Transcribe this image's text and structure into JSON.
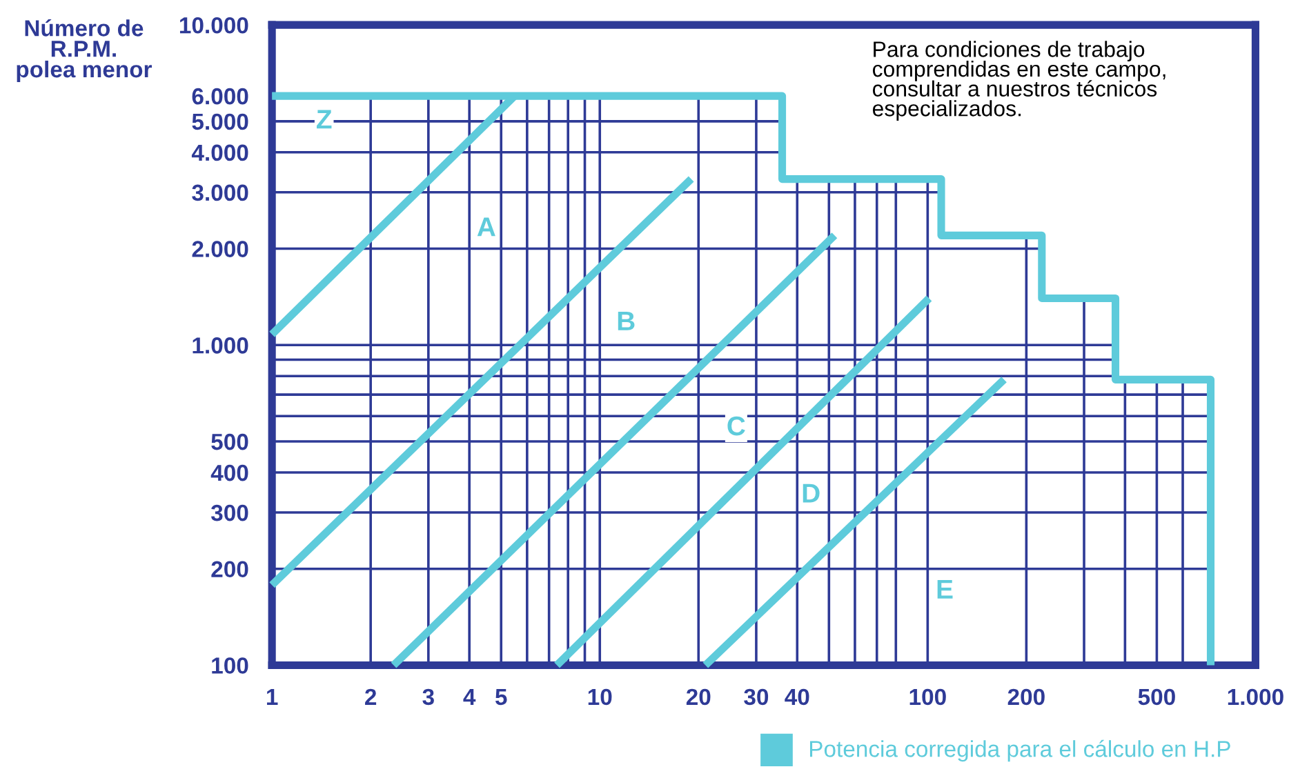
{
  "chart_data": {
    "type": "line",
    "xlabel": "Potencia corregida para el cálculo en H.P",
    "ylabel": "Número de\nR.P.M.\npolea menor",
    "log": "xy",
    "grid": true,
    "marker": "none",
    "line_style": "solid",
    "xlim": [
      1,
      1000
    ],
    "ylim": [
      100,
      10000
    ],
    "xticks": [
      1,
      2,
      3,
      4,
      5,
      {
        "value": 6,
        "label": null
      },
      {
        "value": 7,
        "label": null
      },
      {
        "value": 8,
        "label": null
      },
      {
        "value": 9,
        "label": null
      },
      10,
      20,
      30,
      40,
      {
        "value": 50,
        "label": null
      },
      {
        "value": 60,
        "label": null
      },
      {
        "value": 70,
        "label": null
      },
      {
        "value": 80,
        "label": null
      },
      100,
      200,
      {
        "value": 300,
        "label": null
      },
      {
        "value": 400,
        "label": null
      },
      500,
      {
        "value": 600,
        "label": null
      },
      {
        "value": 1000,
        "label": "1.000"
      }
    ],
    "yticks": [
      100,
      200,
      300,
      400,
      500,
      {
        "value": 600,
        "label": null
      },
      {
        "value": 700,
        "label": null
      },
      {
        "value": 800,
        "label": null
      },
      {
        "value": 900,
        "label": null
      },
      {
        "value": 1000,
        "label": "1.000"
      },
      {
        "value": 2000,
        "label": "2.000"
      },
      {
        "value": 3000,
        "label": "3.000"
      },
      {
        "value": 4000,
        "label": "4.000"
      },
      {
        "value": 5000,
        "label": "5.000"
      },
      {
        "value": 6000,
        "label": "6.000"
      },
      {
        "value": 10000,
        "label": "10.000"
      }
    ],
    "series": [
      {
        "color": "#5ecbdb",
        "x": [
          1,
          36,
          36,
          110,
          110,
          223,
          223,
          374,
          374,
          730,
          730
        ],
        "values": [
          6000,
          6000,
          3300,
          3300,
          2200,
          2200,
          1400,
          1400,
          780,
          780,
          100
        ]
      },
      {
        "color": "#5ecbdb",
        "x": [
          1,
          5.5
        ],
        "values": [
          1080,
          6000
        ]
      },
      {
        "color": "#5ecbdb",
        "x": [
          1,
          19
        ],
        "values": [
          178,
          3300
        ]
      },
      {
        "color": "#5ecbdb",
        "x": [
          2.35,
          52
        ],
        "values": [
          100,
          2200
        ]
      },
      {
        "color": "#5ecbdb",
        "x": [
          7.4,
          101
        ],
        "values": [
          100,
          1400
        ]
      },
      {
        "color": "#5ecbdb",
        "x": [
          21,
          171
        ],
        "values": [
          100,
          780
        ]
      }
    ],
    "annotations": [
      "Z",
      "A",
      "B",
      "C",
      "D",
      "E",
      "Para condiciones de trabajo\ncomprendidas en este campo,\nconsultar a nuestros técnicos\nespecializados."
    ]
  }
}
